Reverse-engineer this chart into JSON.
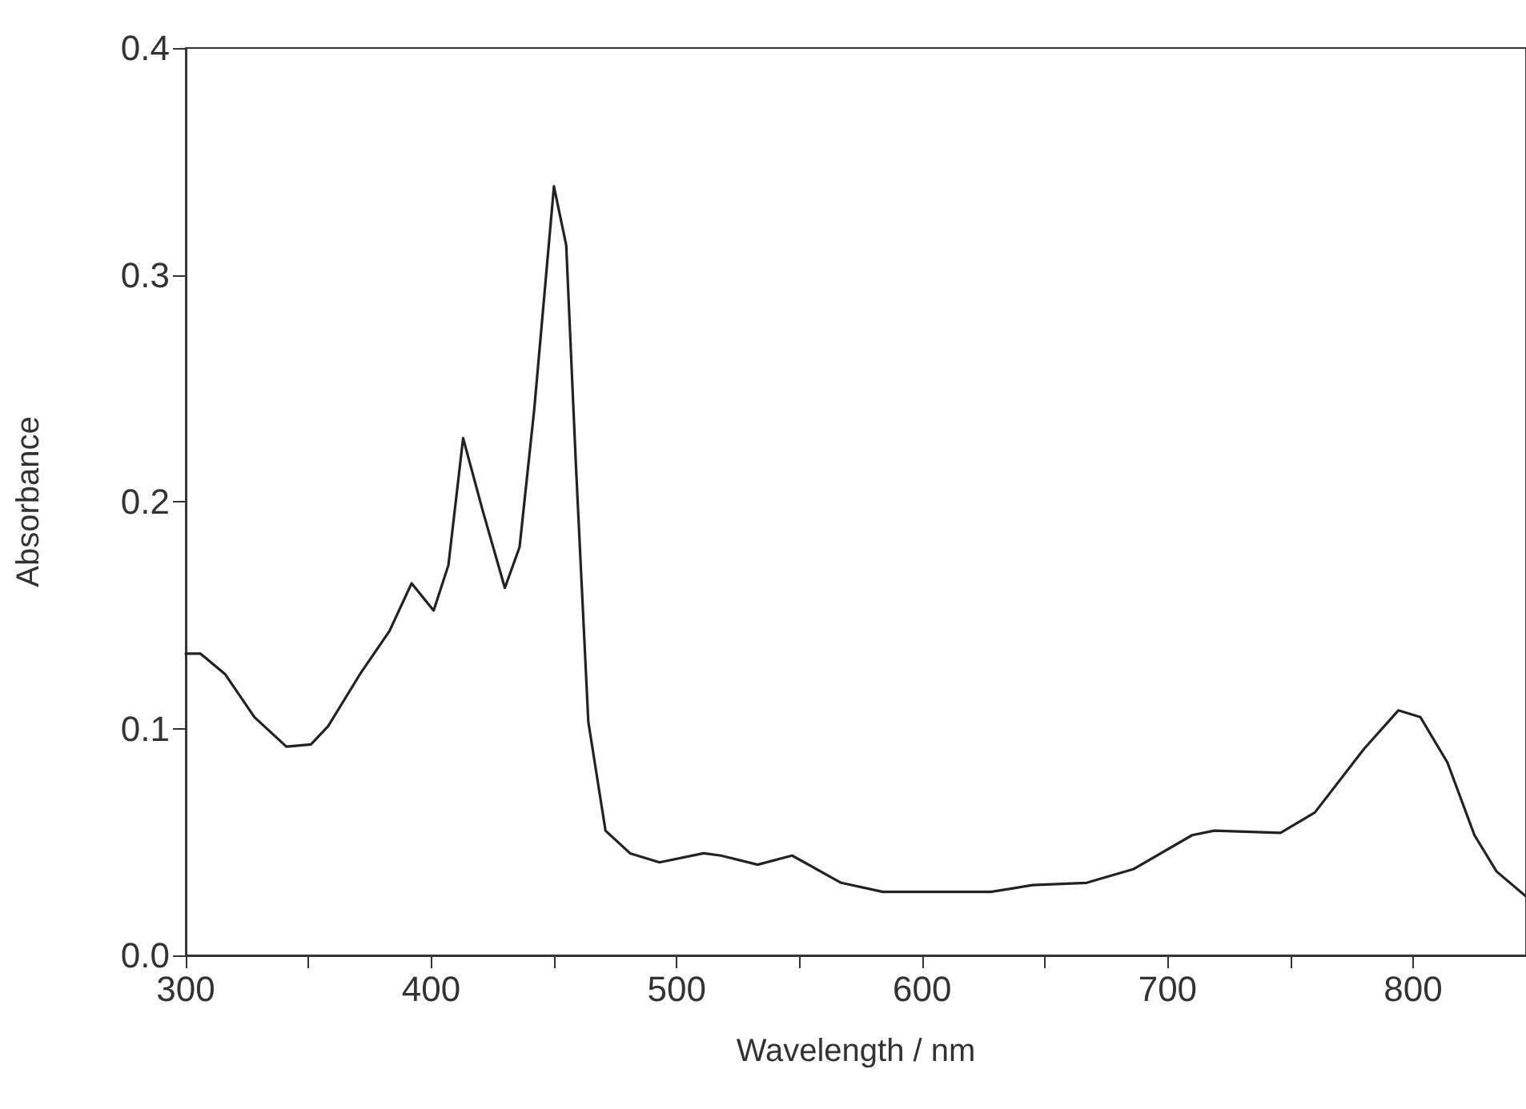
{
  "chart_data": {
    "type": "line",
    "xlabel": "Wavelength / nm",
    "ylabel": "Absorbance",
    "xlim": [
      300,
      846
    ],
    "xticks": [
      300,
      {
        "value": 350,
        "label": null
      },
      400,
      {
        "value": 450,
        "label": null
      },
      500,
      {
        "value": 550,
        "label": null
      },
      600,
      {
        "value": 650,
        "label": null
      },
      700,
      {
        "value": 750,
        "label": null
      },
      800
    ],
    "ylim": [
      0,
      0.4
    ],
    "yticks": [
      {
        "value": 0,
        "label": "0.0"
      },
      0.1,
      0.2,
      0.3,
      0.4
    ],
    "grid": false,
    "marker": "none",
    "line_style": "solid",
    "series": [
      {
        "color": "#222222",
        "x": [
          300,
          306,
          316,
          328,
          341,
          351,
          358,
          371,
          383,
          392,
          401,
          407,
          413,
          421,
          430,
          436,
          442,
          450,
          455,
          459,
          464,
          471,
          481,
          493,
          511,
          518,
          533,
          547,
          567,
          584,
          617,
          628,
          645,
          667,
          686,
          710,
          719,
          746,
          760,
          780,
          794,
          803,
          814,
          825,
          834,
          846
        ],
        "values": [
          0.133,
          0.133,
          0.124,
          0.105,
          0.092,
          0.093,
          0.101,
          0.124,
          0.143,
          0.164,
          0.152,
          0.172,
          0.228,
          0.196,
          0.162,
          0.18,
          0.241,
          0.339,
          0.313,
          0.215,
          0.103,
          0.055,
          0.045,
          0.041,
          0.045,
          0.044,
          0.04,
          0.044,
          0.032,
          0.028,
          0.028,
          0.028,
          0.031,
          0.032,
          0.038,
          0.053,
          0.055,
          0.054,
          0.063,
          0.091,
          0.108,
          0.105,
          0.085,
          0.053,
          0.037,
          0.026
        ]
      }
    ]
  }
}
